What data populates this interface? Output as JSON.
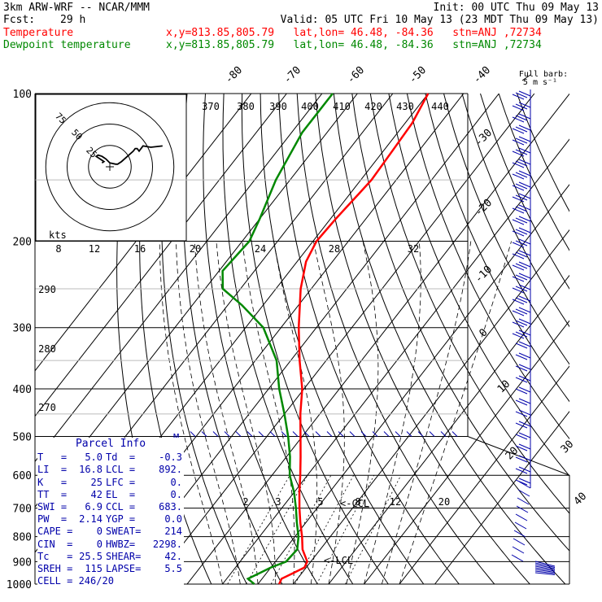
{
  "header": {
    "model": "3km ARW-WRF -- NCAR/MMM",
    "init": "Init: 00 UTC Thu 09 May 13",
    "fcst_label": "Fcst:",
    "fcst_value": "29 h",
    "valid": "Valid: 05 UTC Fri 10 May 13 (23 MDT Thu 09 May 13)",
    "temp_label": "Temperature",
    "temp_loc": "x,y=813.85,805.79   lat,lon= 46.48, -84.36   stn=ANJ ,72734",
    "dew_label": "Dewpoint temperature",
    "dew_loc": "x,y=813.85,805.79   lat,lon= 46.48, -84.36   stn=ANJ ,72734"
  },
  "barb_legend": [
    "Full barb:",
    "5 m s⁻¹"
  ],
  "hodograph": {
    "units": "kts",
    "rings": [
      25,
      50,
      75
    ],
    "ring_labels": [
      "25",
      "50",
      "75"
    ],
    "axis_labels": [
      "8",
      "12",
      "16",
      "20",
      "24",
      "28",
      "32"
    ]
  },
  "chart_data": {
    "type": "line",
    "title": "",
    "y_axis": "pressure (hPa), log scale",
    "ylim": [
      1000,
      100
    ],
    "pressure_ticks": [
      "100",
      "200",
      "300",
      "400",
      "500",
      "600",
      "700",
      "800",
      "900",
      "1000"
    ],
    "isotherm_labels": [
      "-80",
      "-70",
      "-60",
      "-50",
      "-40",
      "-30",
      "-20",
      "-10",
      "0",
      "10",
      "20",
      "30",
      "40"
    ],
    "theta_labels": [
      "370",
      "380",
      "390",
      "400",
      "410",
      "420",
      "430",
      "440"
    ],
    "theta_left_labels": [
      "290",
      "280",
      "270"
    ],
    "mixing_ratio_labels": [
      "2",
      "3",
      "5",
      "8",
      "12",
      "20"
    ],
    "level_markers": [
      "CCL",
      "LCL",
      "M"
    ],
    "series": [
      {
        "name": "Temperature",
        "color": "#ff0000",
        "points": [
          [
            1000,
            6.0
          ],
          [
            975,
            5.5
          ],
          [
            950,
            7.5
          ],
          [
            925,
            9.5
          ],
          [
            900,
            9.0
          ],
          [
            850,
            5.0
          ],
          [
            800,
            2.0
          ],
          [
            750,
            -1.5
          ],
          [
            700,
            -5.0
          ],
          [
            650,
            -8.5
          ],
          [
            600,
            -12.0
          ],
          [
            550,
            -16.0
          ],
          [
            500,
            -20.5
          ],
          [
            450,
            -25.5
          ],
          [
            400,
            -30.5
          ],
          [
            350,
            -37.5
          ],
          [
            300,
            -45.0
          ],
          [
            250,
            -53.0
          ],
          [
            220,
            -57.5
          ],
          [
            200,
            -59.0
          ],
          [
            180,
            -58.5
          ],
          [
            160,
            -57.5
          ],
          [
            150,
            -57.0
          ],
          [
            130,
            -57.5
          ],
          [
            115,
            -58.0
          ],
          [
            100,
            -60.0
          ]
        ]
      },
      {
        "name": "Dewpoint temperature",
        "color": "#008800",
        "points": [
          [
            1000,
            -1.0
          ],
          [
            975,
            -4.0
          ],
          [
            950,
            -2.0
          ],
          [
            925,
            0.0
          ],
          [
            900,
            3.0
          ],
          [
            850,
            3.5
          ],
          [
            800,
            1.0
          ],
          [
            750,
            -2.5
          ],
          [
            700,
            -6.0
          ],
          [
            650,
            -10.0
          ],
          [
            600,
            -15.0
          ],
          [
            550,
            -19.0
          ],
          [
            500,
            -24.0
          ],
          [
            450,
            -30.0
          ],
          [
            400,
            -37.0
          ],
          [
            350,
            -44.0
          ],
          [
            300,
            -55.0
          ],
          [
            270,
            -66.0
          ],
          [
            250,
            -75.0
          ],
          [
            230,
            -79.0
          ],
          [
            200,
            -78.0
          ],
          [
            180,
            -80.0
          ],
          [
            150,
            -84.0
          ],
          [
            120,
            -87.0
          ],
          [
            100,
            -87.0
          ]
        ]
      }
    ],
    "hodograph_trace": [
      [
        -4,
        -3
      ],
      [
        -3,
        -4
      ],
      [
        -5,
        -6
      ],
      [
        -7,
        -8
      ],
      [
        -6,
        -9
      ],
      [
        -4,
        -8
      ],
      [
        -2,
        -6
      ],
      [
        0,
        -3
      ],
      [
        3,
        -2
      ],
      [
        4,
        -2
      ],
      [
        6,
        -4
      ],
      [
        9,
        -8
      ],
      [
        12,
        -12
      ],
      [
        13,
        -14
      ],
      [
        14,
        -14
      ],
      [
        15,
        -12
      ],
      [
        17,
        -16
      ],
      [
        21,
        -15
      ],
      [
        27,
        -16
      ]
    ]
  },
  "parcel_info": {
    "title": "Parcel Info",
    "rows": [
      {
        "k1": "T   =",
        "v1": "5.0",
        "k2": "Td  =",
        "v2": "-0.3"
      },
      {
        "k1": "LI  =",
        "v1": "16.8",
        "k2": "LCL =",
        "v2": "892."
      },
      {
        "k1": "K   =",
        "v1": "25",
        "k2": "LFC =",
        "v2": "0."
      },
      {
        "k1": "TT  =",
        "v1": "42",
        "k2": "EL  =",
        "v2": "0."
      },
      {
        "k1": "SWI =",
        "v1": "6.9",
        "k2": "CCL =",
        "v2": "683."
      },
      {
        "k1": "PW  =",
        "v1": "2.14",
        "k2": "YGP =",
        "v2": "0.0"
      },
      {
        "k1": "CAPE =",
        "v1": "0",
        "k2": "SWEAT=",
        "v2": "214"
      },
      {
        "k1": "CIN  =",
        "v1": "0",
        "k2": "HWBZ=",
        "v2": "2298."
      },
      {
        "k1": "Tc   =",
        "v1": "25.5",
        "k2": "SHEAR=",
        "v2": "42."
      },
      {
        "k1": "SREH =",
        "v1": "115",
        "k2": "LAPSE=",
        "v2": "5.5"
      }
    ],
    "cell": "CELL = 246/20"
  },
  "colors": {
    "temperature": "#ff0000",
    "dewpoint": "#008800",
    "parcel_text": "#0000aa",
    "wind_barbs": "#0000aa"
  }
}
